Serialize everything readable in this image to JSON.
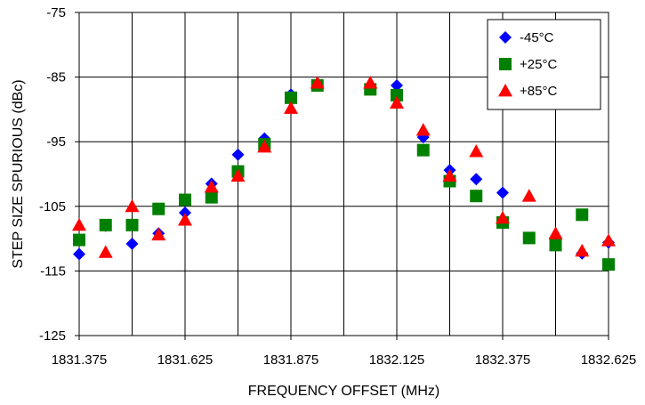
{
  "chart_data": {
    "type": "scatter",
    "title": "",
    "xlabel": "FREQUENCY OFFSET (MHz)",
    "ylabel": "STEP SIZE SPURIOUS (dBc)",
    "xlim": [
      1831.375,
      1832.625
    ],
    "ylim": [
      -125,
      -75
    ],
    "x_ticks": [
      "1831.375",
      "1831.625",
      "1831.875",
      "1832.125",
      "1832.375",
      "1832.625"
    ],
    "x_tick_values": [
      1831.375,
      1831.625,
      1831.875,
      1832.125,
      1832.375,
      1832.625
    ],
    "y_ticks": [
      "-75",
      "-85",
      "-95",
      "-105",
      "-115",
      "-125"
    ],
    "y_tick_values": [
      -75,
      -85,
      -95,
      -105,
      -115,
      -125
    ],
    "x_gridlines": [
      1831.375,
      1831.5,
      1831.625,
      1831.75,
      1831.875,
      1832.0,
      1832.125,
      1832.25,
      1832.375,
      1832.5,
      1832.625
    ],
    "y_gridlines": [
      -75,
      -85,
      -95,
      -105,
      -115,
      -125
    ],
    "grid": true,
    "legend_position": "top-right",
    "series": [
      {
        "name": "-45°C",
        "marker": "diamond",
        "color": "#0000ff",
        "points": [
          [
            1831.375,
            -112.4
          ],
          [
            1831.4375,
            -108.0
          ],
          [
            1831.5,
            -110.8
          ],
          [
            1831.5625,
            -109.2
          ],
          [
            1831.625,
            -106.0
          ],
          [
            1831.6875,
            -101.5
          ],
          [
            1831.75,
            -97.0
          ],
          [
            1831.8125,
            -94.5
          ],
          [
            1831.875,
            -87.7
          ],
          [
            1831.9375,
            -86.3
          ],
          [
            1832.0625,
            -86.7
          ],
          [
            1832.125,
            -86.3
          ],
          [
            1832.1875,
            -94.3
          ],
          [
            1832.25,
            -99.4
          ],
          [
            1832.3125,
            -100.8
          ],
          [
            1832.375,
            -102.9
          ],
          [
            1832.4375,
            -109.9
          ],
          [
            1832.5,
            -110.2
          ],
          [
            1832.5625,
            -112.3
          ],
          [
            1832.625,
            -110.6
          ]
        ]
      },
      {
        "name": "+25°C",
        "marker": "square",
        "color": "#008000",
        "points": [
          [
            1831.375,
            -110.2
          ],
          [
            1831.4375,
            -107.9
          ],
          [
            1831.5,
            -107.9
          ],
          [
            1831.5625,
            -105.4
          ],
          [
            1831.625,
            -104.0
          ],
          [
            1831.6875,
            -103.6
          ],
          [
            1831.75,
            -99.6
          ],
          [
            1831.8125,
            -95.4
          ],
          [
            1831.875,
            -88.2
          ],
          [
            1831.9375,
            -86.3
          ],
          [
            1832.0625,
            -86.9
          ],
          [
            1832.125,
            -87.8
          ],
          [
            1832.1875,
            -96.3
          ],
          [
            1832.25,
            -101.1
          ],
          [
            1832.3125,
            -103.4
          ],
          [
            1832.375,
            -107.5
          ],
          [
            1832.4375,
            -109.9
          ],
          [
            1832.5,
            -111.0
          ],
          [
            1832.5625,
            -106.3
          ],
          [
            1832.625,
            -114.0
          ]
        ]
      },
      {
        "name": "+85°C",
        "marker": "triangle",
        "color": "#ff0000",
        "points": [
          [
            1831.375,
            -107.9
          ],
          [
            1831.4375,
            -112.1
          ],
          [
            1831.5,
            -105.0
          ],
          [
            1831.5625,
            -109.4
          ],
          [
            1831.625,
            -107.1
          ],
          [
            1831.6875,
            -102.0
          ],
          [
            1831.75,
            -100.3
          ],
          [
            1831.8125,
            -95.8
          ],
          [
            1831.875,
            -89.8
          ],
          [
            1831.9375,
            -85.9
          ],
          [
            1832.0625,
            -85.9
          ],
          [
            1832.125,
            -89.0
          ],
          [
            1832.1875,
            -93.2
          ],
          [
            1832.25,
            -100.3
          ],
          [
            1832.3125,
            -96.5
          ],
          [
            1832.375,
            -106.8
          ],
          [
            1832.4375,
            -103.4
          ],
          [
            1832.5,
            -109.2
          ],
          [
            1832.5625,
            -111.9
          ],
          [
            1832.625,
            -110.3
          ]
        ]
      }
    ]
  }
}
